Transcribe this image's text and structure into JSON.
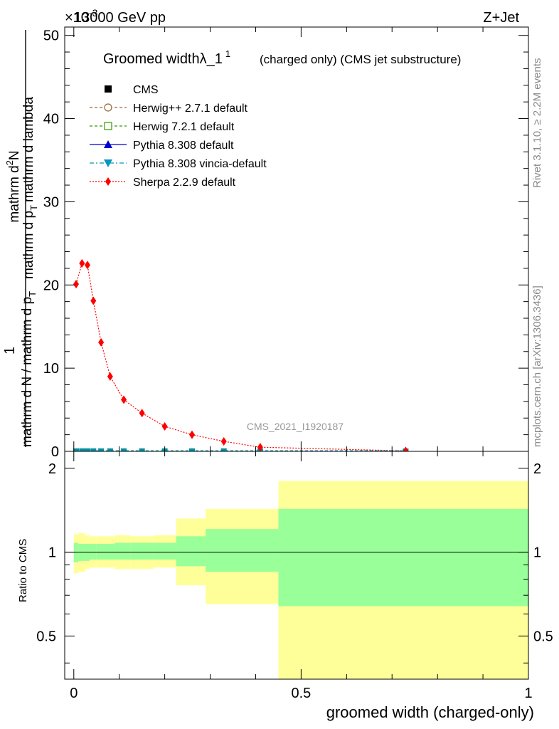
{
  "header": {
    "left": "13000 GeV pp",
    "right": "Z+Jet",
    "exponent_prefix": "×10",
    "exponent_power": "-3"
  },
  "side_labels": {
    "rivet": "Rivet 3.1.10, ≥ 2.2M events",
    "mcplots": "mcplots.cern.ch [arXiv:1306.3436]"
  },
  "watermark": "CMS_2021_I1920187",
  "legend": {
    "title_main": "Groomed widthλ_1",
    "title_sup": "1",
    "title_rest": "(charged only) (CMS jet substructure)",
    "entries": [
      {
        "label": "CMS",
        "color": "#000000",
        "marker": "square-filled",
        "line": "none"
      },
      {
        "label": "Herwig++ 2.7.1 default",
        "color": "#996633",
        "marker": "circle-open",
        "line": "dashed"
      },
      {
        "label": "Herwig 7.2.1 default",
        "color": "#339900",
        "marker": "square-open",
        "line": "dashed"
      },
      {
        "label": "Pythia 8.308 default",
        "color": "#0000cc",
        "marker": "triangle-up",
        "line": "solid"
      },
      {
        "label": "Pythia 8.308 vincia-default",
        "color": "#0099bb",
        "marker": "triangle-down",
        "line": "dashdot"
      },
      {
        "label": "Sherpa 2.2.9 default",
        "color": "#ff0000",
        "marker": "diamond",
        "line": "dotted"
      }
    ]
  },
  "chart_data": [
    {
      "type": "scatter",
      "panel": "main",
      "ylabel_numerator": "1",
      "ylabel_denominator": "mathrm d N / mathrm d p",
      "ylabel_denominator_sub": "T",
      "ylabel_numerator_main": "mathrm d",
      "ylabel_numerator_sup": "2",
      "ylabel_numerator_N": "N",
      "ylabel_lower": "mathrm d p",
      "ylabel_lower_sub": "T",
      "ylabel_lower_rest": "mathrm d lambda",
      "ylim": [
        0,
        51
      ],
      "xlim": [
        -0.02,
        1.0
      ],
      "y_ticks": [
        "0",
        "10",
        "20",
        "30",
        "40",
        "50"
      ],
      "y_tick_values": [
        0,
        10,
        20,
        30,
        40,
        50
      ],
      "series": [
        {
          "name": "Sherpa 2.2.9 default",
          "x": [
            0.005,
            0.018,
            0.03,
            0.043,
            0.06,
            0.08,
            0.11,
            0.15,
            0.2,
            0.26,
            0.33,
            0.41,
            0.73
          ],
          "y": [
            20.1,
            22.6,
            22.4,
            18.1,
            13.1,
            9.0,
            6.2,
            4.6,
            3.0,
            2.0,
            1.2,
            0.5,
            0.05
          ]
        },
        {
          "name": "CMS",
          "x": [
            0.005,
            0.018,
            0.03,
            0.043,
            0.06,
            0.08,
            0.11,
            0.15,
            0.2,
            0.26,
            0.33,
            0.41,
            0.73
          ],
          "y": [
            0.02,
            0.02,
            0.02,
            0.02,
            0.02,
            0.02,
            0.02,
            0.02,
            0.02,
            0.02,
            0.02,
            0.01,
            0.005
          ]
        }
      ]
    },
    {
      "type": "area",
      "panel": "ratio",
      "ylabel": "Ratio to CMS",
      "xlabel": "groomed width (charged-only)",
      "ylim": [
        0.35,
        2.3
      ],
      "log_scale_y": true,
      "y_ticks": [
        "0.5",
        "1",
        "2"
      ],
      "y_tick_values": [
        0.5,
        1,
        2
      ],
      "x_ticks": [
        "0",
        "0.5",
        "1"
      ],
      "x_tick_values": [
        0,
        0.5,
        1
      ],
      "bins": [
        {
          "lo": 0.0,
          "hi": 0.01,
          "green": [
            0.92,
            1.08
          ],
          "yellow": [
            0.84,
            1.16
          ]
        },
        {
          "lo": 0.01,
          "hi": 0.025,
          "green": [
            0.93,
            1.07
          ],
          "yellow": [
            0.85,
            1.17
          ]
        },
        {
          "lo": 0.025,
          "hi": 0.035,
          "green": [
            0.93,
            1.07
          ],
          "yellow": [
            0.87,
            1.15
          ]
        },
        {
          "lo": 0.035,
          "hi": 0.05,
          "green": [
            0.94,
            1.07
          ],
          "yellow": [
            0.88,
            1.14
          ]
        },
        {
          "lo": 0.05,
          "hi": 0.07,
          "green": [
            0.94,
            1.07
          ],
          "yellow": [
            0.88,
            1.14
          ]
        },
        {
          "lo": 0.07,
          "hi": 0.09,
          "green": [
            0.94,
            1.07
          ],
          "yellow": [
            0.88,
            1.14
          ]
        },
        {
          "lo": 0.09,
          "hi": 0.125,
          "green": [
            0.94,
            1.08
          ],
          "yellow": [
            0.87,
            1.15
          ]
        },
        {
          "lo": 0.125,
          "hi": 0.175,
          "green": [
            0.94,
            1.08
          ],
          "yellow": [
            0.87,
            1.14
          ]
        },
        {
          "lo": 0.175,
          "hi": 0.225,
          "green": [
            0.94,
            1.08
          ],
          "yellow": [
            0.88,
            1.15
          ]
        },
        {
          "lo": 0.225,
          "hi": 0.29,
          "green": [
            0.89,
            1.14
          ],
          "yellow": [
            0.76,
            1.32
          ]
        },
        {
          "lo": 0.29,
          "hi": 0.45,
          "green": [
            0.85,
            1.21
          ],
          "yellow": [
            0.65,
            1.43
          ]
        },
        {
          "lo": 0.45,
          "hi": 1.0,
          "green": [
            0.64,
            1.43
          ],
          "yellow": [
            0.35,
            1.8
          ]
        }
      ]
    }
  ]
}
